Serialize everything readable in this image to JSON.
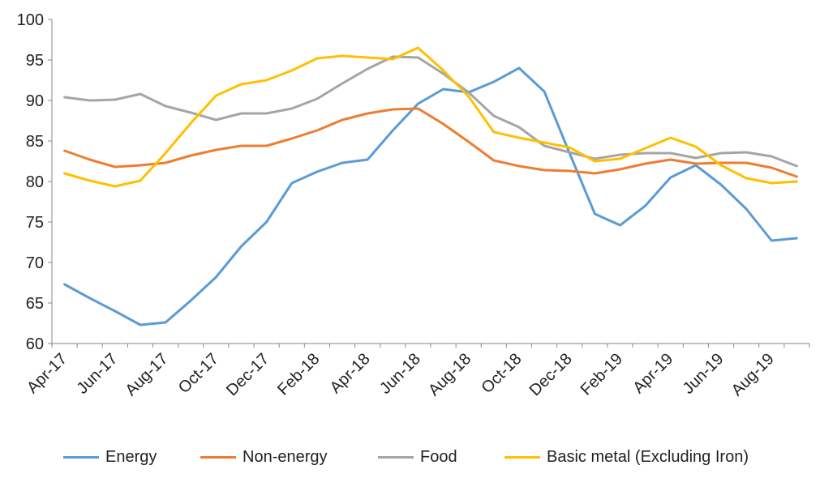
{
  "chart_data": {
    "type": "line",
    "title": "",
    "xlabel": "",
    "ylabel": "",
    "ylim": [
      60,
      100
    ],
    "yticks": [
      60,
      65,
      70,
      75,
      80,
      85,
      90,
      95,
      100
    ],
    "grid": false,
    "legend_position": "bottom",
    "x": [
      "Apr-17",
      "May-17",
      "Jun-17",
      "Jul-17",
      "Aug-17",
      "Sep-17",
      "Oct-17",
      "Nov-17",
      "Dec-17",
      "Jan-18",
      "Feb-18",
      "Mar-18",
      "Apr-18",
      "May-18",
      "Jun-18",
      "Jul-18",
      "Aug-18",
      "Sep-18",
      "Oct-18",
      "Nov-18",
      "Dec-18",
      "Jan-19",
      "Feb-19",
      "Mar-19",
      "Apr-19",
      "May-19",
      "Jun-19",
      "Jul-19",
      "Aug-19",
      "Sep-19"
    ],
    "x_tick_labels": [
      "Apr-17",
      "Jun-17",
      "Aug-17",
      "Oct-17",
      "Dec-17",
      "Feb-18",
      "Apr-18",
      "Jun-18",
      "Aug-18",
      "Oct-18",
      "Dec-18",
      "Feb-19",
      "Apr-19",
      "Jun-19",
      "Aug-19"
    ],
    "series": [
      {
        "name": "Energy",
        "color": "#5B9BD5",
        "values": [
          67.3,
          65.6,
          64.0,
          62.3,
          62.6,
          65.3,
          68.2,
          72.0,
          75.0,
          79.8,
          81.2,
          82.3,
          82.7,
          86.3,
          89.6,
          91.4,
          91.0,
          92.3,
          94.0,
          91.1,
          83.5,
          76.0,
          74.6,
          77.0,
          80.5,
          82.0,
          79.6,
          76.6,
          72.7,
          73.0
        ]
      },
      {
        "name": "Non-energy",
        "color": "#ED7D31",
        "values": [
          83.8,
          82.7,
          81.8,
          82.0,
          82.3,
          83.2,
          83.9,
          84.4,
          84.4,
          85.3,
          86.3,
          87.6,
          88.4,
          88.9,
          89.0,
          87.1,
          84.9,
          82.6,
          81.9,
          81.4,
          81.3,
          81.0,
          81.5,
          82.2,
          82.7,
          82.2,
          82.3,
          82.3,
          81.7,
          80.6
        ]
      },
      {
        "name": "Food",
        "color": "#A5A5A5",
        "values": [
          90.4,
          90.0,
          90.1,
          90.8,
          89.3,
          88.5,
          87.6,
          88.4,
          88.4,
          89.0,
          90.2,
          92.1,
          93.9,
          95.4,
          95.3,
          93.3,
          91.0,
          88.1,
          86.7,
          84.4,
          83.6,
          82.8,
          83.3,
          83.5,
          83.5,
          82.9,
          83.5,
          83.6,
          83.1,
          81.9
        ]
      },
      {
        "name": "Basic metal (Excluding Iron)",
        "color": "#FFC000",
        "values": [
          81.0,
          80.1,
          79.4,
          80.1,
          83.5,
          87.2,
          90.6,
          92.0,
          92.5,
          93.7,
          95.2,
          95.5,
          95.3,
          95.1,
          96.5,
          93.7,
          90.5,
          86.1,
          85.4,
          84.8,
          84.2,
          82.5,
          82.8,
          84.1,
          85.4,
          84.3,
          82.0,
          80.4,
          79.8,
          80.0
        ]
      }
    ]
  }
}
